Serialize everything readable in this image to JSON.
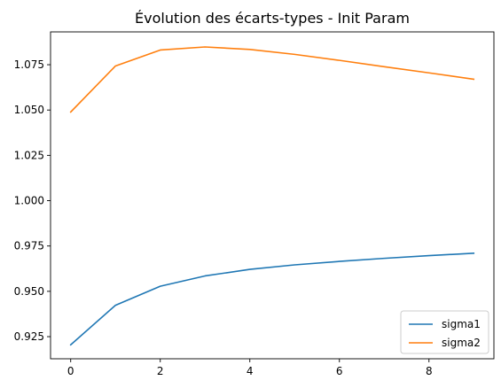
{
  "chart_data": {
    "type": "line",
    "title": "Évolution des écarts-types - Init Param",
    "xlabel": "",
    "ylabel": "",
    "x": [
      0,
      1,
      2,
      3,
      4,
      5,
      6,
      7,
      8,
      9
    ],
    "xlim": [
      -0.45,
      9.45
    ],
    "ylim": [
      0.9128,
      1.0931
    ],
    "xticks": [
      0,
      2,
      4,
      6,
      8
    ],
    "yticks": [
      0.925,
      0.95,
      0.975,
      1.0,
      1.025,
      1.05,
      1.075
    ],
    "ytick_labels": [
      "0.925",
      "0.950",
      "0.975",
      "1.000",
      "1.025",
      "1.050",
      "1.075"
    ],
    "grid": false,
    "legend_position": "lower-right",
    "series": [
      {
        "name": "sigma1",
        "color": "#1f77b4",
        "values": [
          0.9205,
          0.9423,
          0.9528,
          0.9585,
          0.9621,
          0.9646,
          0.9665,
          0.9682,
          0.9697,
          0.971
        ]
      },
      {
        "name": "sigma2",
        "color": "#ff7f0e",
        "values": [
          1.0489,
          1.0743,
          1.0831,
          1.0848,
          1.0834,
          1.0807,
          1.0774,
          1.0739,
          1.0705,
          1.067
        ]
      }
    ]
  }
}
